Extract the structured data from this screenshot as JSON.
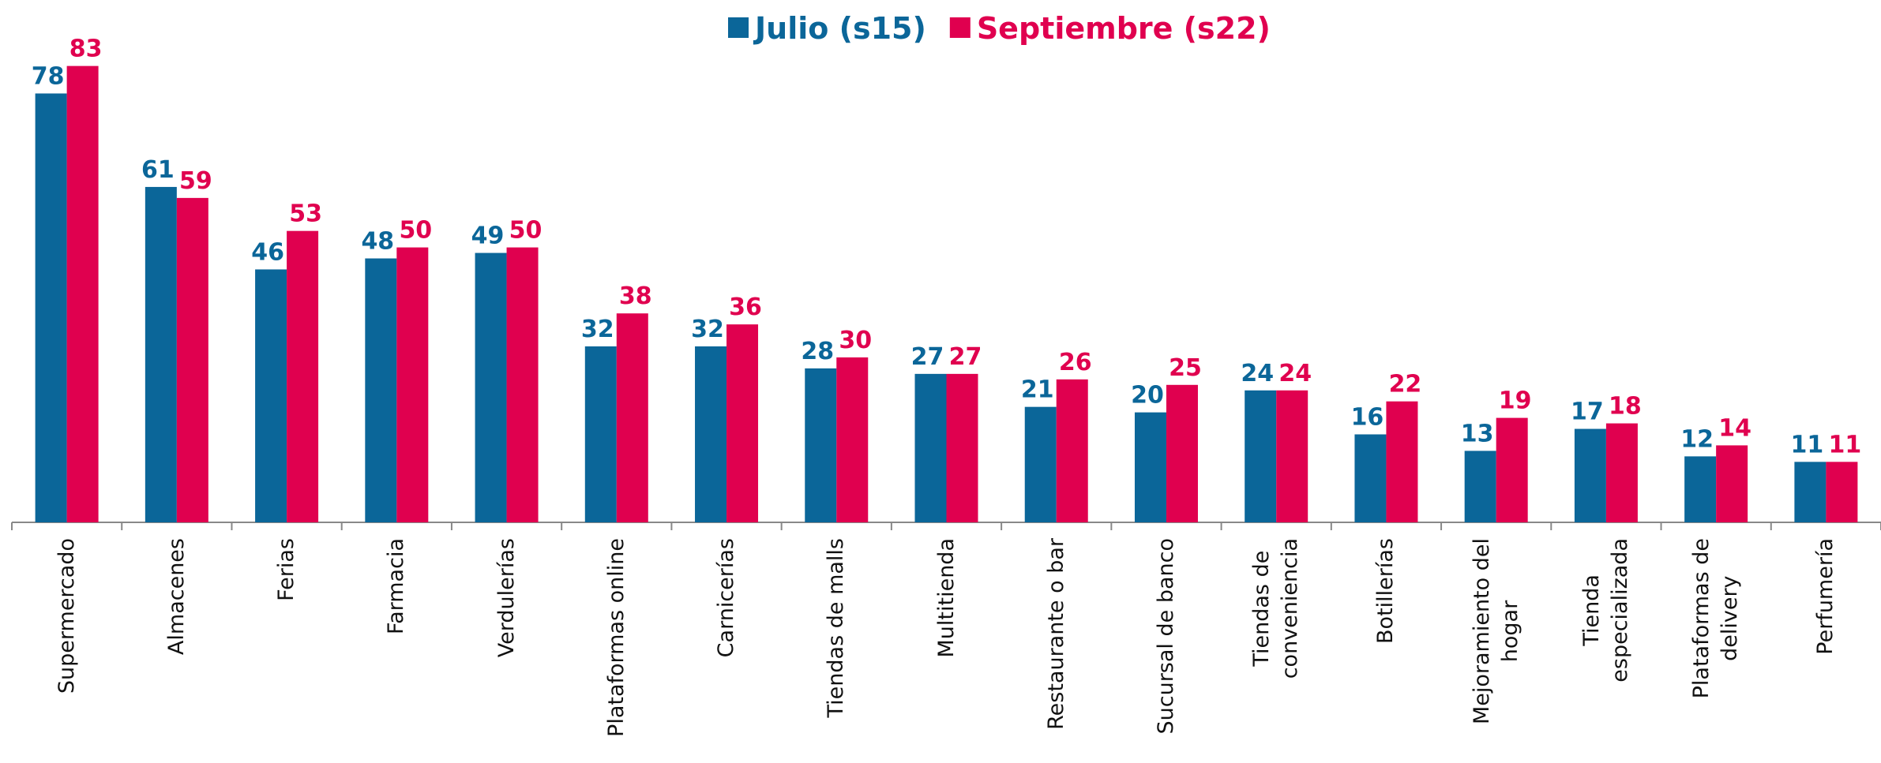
{
  "chart_data": {
    "type": "bar",
    "categories": [
      "Supermercado",
      "Almacenes",
      "Ferias",
      "Farmacia",
      "Verdulerías",
      "Plataformas online",
      "Carnicerías",
      "Tiendas de malls",
      "Multitienda",
      "Restaurante o bar",
      "Sucursal de banco",
      "Tiendas de\nconveniencia",
      "Botillerías",
      "Mejoramiento del\nhogar",
      "Tienda\nespecializada",
      "Plataformas de\ndelivery",
      "Perfumería"
    ],
    "series": [
      {
        "name": "Julio (s15)",
        "color": "#0b6699",
        "values": [
          78,
          61,
          46,
          48,
          49,
          32,
          32,
          28,
          27,
          21,
          20,
          24,
          16,
          13,
          17,
          12,
          11
        ]
      },
      {
        "name": "Septiembre (s22)",
        "color": "#e0004f",
        "values": [
          83,
          59,
          53,
          50,
          50,
          38,
          36,
          30,
          27,
          26,
          25,
          24,
          22,
          19,
          18,
          14,
          11
        ]
      }
    ],
    "ylim": [
      0,
      95
    ],
    "legend": "top",
    "grid": false
  }
}
